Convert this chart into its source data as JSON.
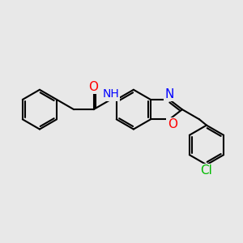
{
  "bg_color": "#e8e8e8",
  "bond_color": "#000000",
  "bond_width": 1.5,
  "atom_colors": {
    "N": "#0000ff",
    "O": "#ff0000",
    "Cl": "#00bb00",
    "H": "#888888",
    "C": "#000000"
  },
  "font_size": 9,
  "fig_size": [
    3.0,
    3.0
  ],
  "dpi": 100
}
